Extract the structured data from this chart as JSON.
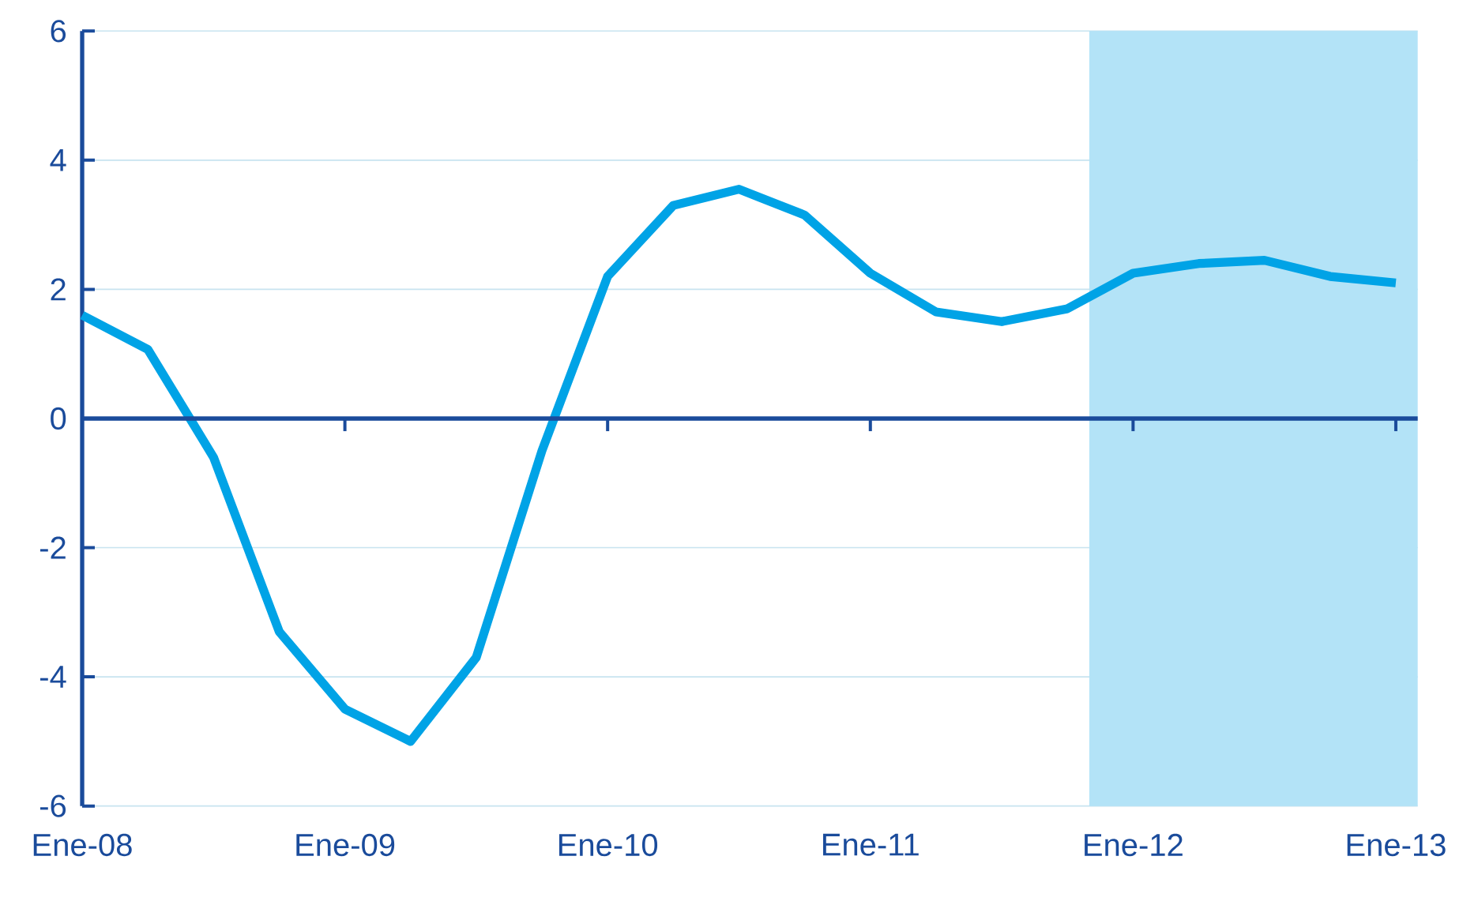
{
  "chart_data": {
    "type": "line",
    "x": [
      "2008-01",
      "2008-04",
      "2008-07",
      "2008-10",
      "2009-01",
      "2009-04",
      "2009-07",
      "2009-10",
      "2010-01",
      "2010-04",
      "2010-07",
      "2010-10",
      "2011-01",
      "2011-04",
      "2011-07",
      "2011-10",
      "2012-01",
      "2012-04",
      "2012-07",
      "2012-10",
      "2013-01"
    ],
    "series": [
      {
        "color": "#00a3e6",
        "values": [
          1.6,
          1.07,
          -0.6,
          -3.3,
          -4.5,
          -5.0,
          -3.7,
          -0.5,
          2.2,
          3.3,
          3.55,
          3.15,
          2.25,
          1.65,
          1.5,
          1.7,
          2.25,
          2.4,
          2.45,
          2.2,
          2.1
        ]
      }
    ],
    "xlim": [
      "2008-01",
      "2013-02"
    ],
    "xticks": [
      {
        "value": "2008-01",
        "label": "Ene-08"
      },
      {
        "value": "2009-01",
        "label": "Ene-09"
      },
      {
        "value": "2010-01",
        "label": "Ene-10"
      },
      {
        "value": "2011-01",
        "label": "Ene-11"
      },
      {
        "value": "2012-01",
        "label": "Ene-12"
      },
      {
        "value": "2013-01",
        "label": "Ene-13"
      }
    ],
    "ylim": [
      -6,
      6
    ],
    "yticks": [
      -6,
      -4,
      -2,
      0,
      2,
      4,
      6
    ],
    "bands": [
      {
        "axis": "x",
        "from": "2011-11",
        "to": "2013-02",
        "color": "#b3e3f7"
      }
    ],
    "ref_lines": [
      {
        "axis": "y",
        "value": 0,
        "color": "#1a4b9b"
      }
    ],
    "grid": "y",
    "line_style": "solid",
    "marker": "none"
  }
}
